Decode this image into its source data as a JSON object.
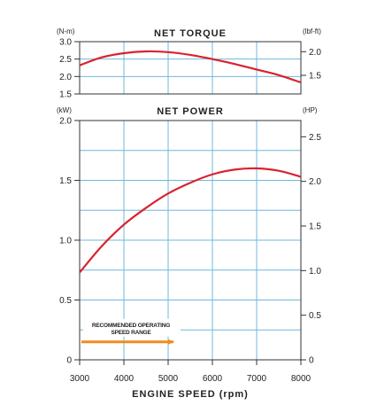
{
  "chart_data": [
    {
      "type": "line",
      "title": "NET TORQUE",
      "left_unit": "(N-m)",
      "right_unit": "(lbf-ft)",
      "xlim": [
        3000,
        8000
      ],
      "ylim": [
        1.5,
        3.0
      ],
      "left_ticks": [
        "3.0",
        "2.5",
        "2.0",
        "1.5"
      ],
      "left_tick_values": [
        3.0,
        2.5,
        2.0,
        1.5
      ],
      "right_ticks": [
        "2.0",
        "1.5"
      ],
      "right_tick_values": [
        2.0,
        1.5
      ],
      "right_scale_factor": 0.7376,
      "grid": true,
      "series": [
        {
          "x": [
            3000,
            3500,
            4000,
            4500,
            5000,
            5500,
            6000,
            6500,
            7000,
            7500,
            8000
          ],
          "y": [
            2.32,
            2.55,
            2.67,
            2.72,
            2.7,
            2.62,
            2.5,
            2.36,
            2.2,
            2.04,
            1.83
          ],
          "color": "#d9232e"
        }
      ]
    },
    {
      "type": "line",
      "title": "NET POWER",
      "left_unit": "(kW)",
      "right_unit": "(HP)",
      "xlabel": "ENGINE SPEED (rpm)",
      "xlim": [
        3000,
        8000
      ],
      "ylim": [
        0,
        2.0
      ],
      "x_ticks": [
        "3000",
        "4000",
        "5000",
        "6000",
        "7000",
        "8000"
      ],
      "x_tick_values": [
        3000,
        4000,
        5000,
        6000,
        7000,
        8000
      ],
      "left_ticks": [
        "2.0",
        "1.5",
        "1.0",
        "0.5",
        "0"
      ],
      "left_tick_values": [
        2.0,
        1.5,
        1.0,
        0.5,
        0
      ],
      "right_ticks": [
        "2.5",
        "2.0",
        "1.5",
        "1.0",
        "0.5",
        "0"
      ],
      "right_tick_values": [
        2.5,
        2.0,
        1.5,
        1.0,
        0.5,
        0
      ],
      "right_scale_factor": 1.341,
      "grid": true,
      "series": [
        {
          "x": [
            3000,
            3500,
            4000,
            4500,
            5000,
            5500,
            6000,
            6500,
            7000,
            7500,
            8000
          ],
          "y": [
            0.73,
            0.95,
            1.13,
            1.27,
            1.39,
            1.48,
            1.55,
            1.59,
            1.6,
            1.58,
            1.53
          ],
          "color": "#d9232e"
        }
      ],
      "annotation": {
        "line1": "RECOMMENDED OPERATING",
        "line2": "SPEED RANGE",
        "x_start": 3000,
        "x_end": 5000,
        "y": 0.15,
        "color": "#f08c1c"
      }
    }
  ]
}
